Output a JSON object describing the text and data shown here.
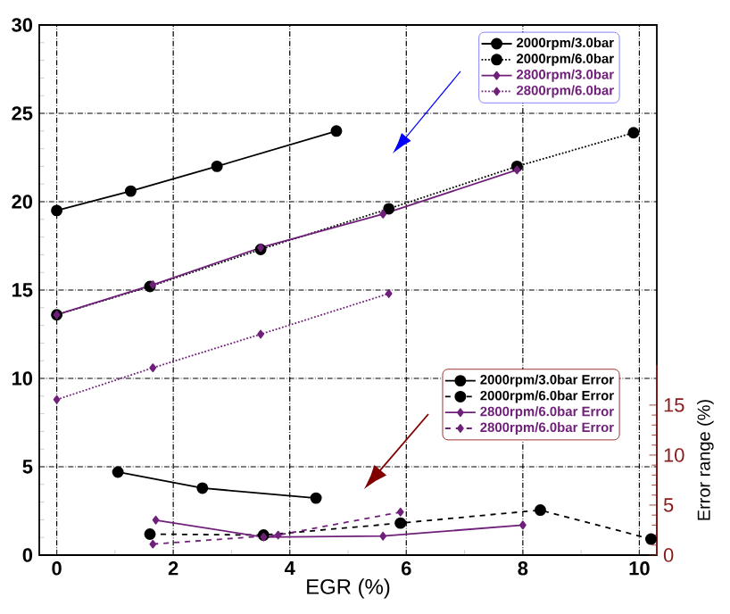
{
  "chart_data": {
    "type": "line",
    "xlabel": "EGR (%)",
    "y2label": "Error range (%)",
    "xlim": [
      -0.3,
      10.3
    ],
    "ylim": [
      0,
      30
    ],
    "y2lim": [
      0,
      19
    ],
    "xticks": [
      0,
      2,
      4,
      6,
      8,
      10
    ],
    "yticks": [
      0,
      5,
      10,
      15,
      20,
      25,
      30
    ],
    "y2ticks": [
      0,
      5,
      10,
      15
    ],
    "grid": true,
    "legend": "top right",
    "series": [
      {
        "name": "2000rpm/3.0bar",
        "color": "#000000",
        "marker": "circle",
        "line_style": "solid",
        "x": [
          0,
          1.27,
          2.75,
          4.8
        ],
        "values": [
          19.5,
          20.6,
          22.0,
          24.0
        ]
      },
      {
        "name": "2000rpm/6.0bar",
        "color": "#000000",
        "marker": "circle",
        "line_style": "dotted",
        "x": [
          0,
          1.6,
          3.5,
          5.7,
          7.9,
          9.9
        ],
        "values": [
          13.6,
          15.2,
          17.3,
          19.6,
          22.0,
          23.9
        ]
      },
      {
        "name": "2800rpm/3.0bar",
        "color": "#70207a",
        "marker": "diamond",
        "line_style": "solid",
        "x": [
          0,
          1.65,
          3.5,
          5.6,
          7.9
        ],
        "values": [
          13.6,
          15.3,
          17.4,
          19.3,
          21.8
        ]
      },
      {
        "name": "2800rpm/6.0bar",
        "color": "#70207a",
        "marker": "diamond",
        "line_style": "dotted",
        "x": [
          0,
          1.65,
          3.5,
          5.7
        ],
        "values": [
          8.8,
          10.6,
          12.5,
          14.8
        ]
      },
      {
        "name": "2000rpm/3.0bar Error",
        "color": "#000000",
        "marker": "circle",
        "line_style": "solid",
        "axis": "y2",
        "x": [
          1.05,
          2.5,
          4.45
        ],
        "values": [
          8.3,
          6.7,
          5.7
        ]
      },
      {
        "name": "2000rpm/6.0bar Error",
        "color": "#000000",
        "marker": "circle",
        "line_style": "dashed",
        "axis": "y2",
        "x": [
          1.6,
          3.55,
          5.9,
          8.3,
          10.2
        ],
        "values": [
          2.1,
          2.0,
          3.2,
          4.5,
          1.6
        ]
      },
      {
        "name": "2800rpm/6.0bar Error",
        "color": "#70207a",
        "marker": "diamond",
        "line_style": "solid",
        "axis": "y2",
        "x": [
          1.7,
          3.55,
          5.6,
          8.0
        ],
        "values": [
          3.5,
          1.8,
          1.9,
          3.0
        ]
      },
      {
        "name": "2800rpm/6.0bar Error",
        "color": "#70207a",
        "marker": "diamond",
        "line_style": "dashed",
        "axis": "y2",
        "x": [
          1.65,
          3.8,
          5.9
        ],
        "values": [
          1.1,
          2.0,
          4.3
        ]
      }
    ]
  }
}
